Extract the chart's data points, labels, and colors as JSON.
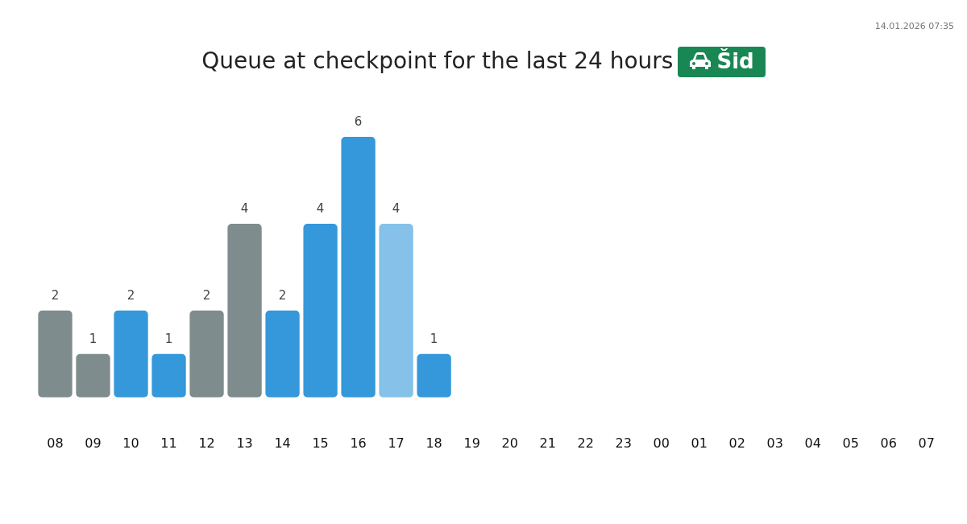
{
  "chart_data": {
    "type": "bar",
    "title": "Queue at checkpoint for the last 24 hours",
    "subtitle": "Šid",
    "annotations": [
      "14.01.2026 07:35"
    ],
    "categories": [
      "08",
      "09",
      "10",
      "11",
      "12",
      "13",
      "14",
      "15",
      "16",
      "17",
      "18",
      "19",
      "20",
      "21",
      "22",
      "23",
      "00",
      "01",
      "02",
      "03",
      "04",
      "05",
      "06",
      "07"
    ],
    "values": [
      2,
      1,
      2,
      1,
      2,
      4,
      2,
      4,
      6,
      4,
      1,
      null,
      null,
      null,
      null,
      null,
      null,
      null,
      null,
      null,
      null,
      null,
      null,
      null
    ],
    "colors": [
      "#7f8c8d",
      "#7f8c8d",
      "#3498db",
      "#3498db",
      "#7f8c8d",
      "#7f8c8d",
      "#3498db",
      "#3498db",
      "#3498db",
      "#85c1e9",
      "#3498db",
      "#3498db",
      "#3498db",
      "#3498db",
      "#3498db",
      "#3498db",
      "#3498db",
      "#3498db",
      "#3498db",
      "#3498db",
      "#3498db",
      "#3498db",
      "#3498db",
      "#3498db"
    ],
    "data_labels": true,
    "grid": false,
    "legend": false
  }
}
